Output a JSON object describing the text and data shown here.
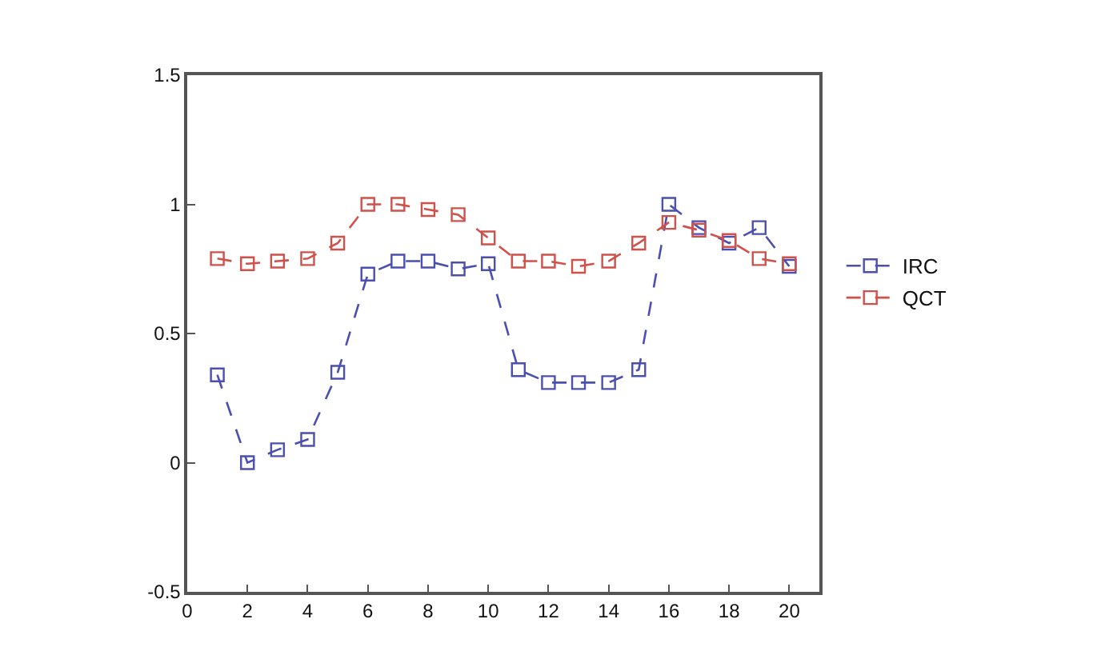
{
  "chart_data": {
    "type": "line",
    "x": [
      1,
      2,
      3,
      4,
      5,
      6,
      7,
      8,
      9,
      10,
      11,
      12,
      13,
      14,
      15,
      16,
      17,
      18,
      19,
      20
    ],
    "series": [
      {
        "name": "IRC",
        "color": "#4a4fb0",
        "values": [
          0.34,
          0.0,
          0.05,
          0.09,
          0.35,
          0.73,
          0.78,
          0.78,
          0.75,
          0.77,
          0.36,
          0.31,
          0.31,
          0.31,
          0.36,
          1.0,
          0.91,
          0.85,
          0.91,
          0.76
        ]
      },
      {
        "name": "QCT",
        "color": "#d0504a",
        "values": [
          0.79,
          0.77,
          0.78,
          0.79,
          0.85,
          1.0,
          1.0,
          0.98,
          0.96,
          0.87,
          0.78,
          0.78,
          0.76,
          0.78,
          0.85,
          0.93,
          0.9,
          0.86,
          0.79,
          0.77
        ]
      }
    ],
    "xlim": [
      0,
      21
    ],
    "xticks": [
      0,
      2,
      4,
      6,
      8,
      10,
      12,
      14,
      16,
      18,
      20
    ],
    "ylim": [
      -0.5,
      1.5
    ],
    "yticks": [
      -0.5,
      0,
      0.5,
      1,
      1.5
    ],
    "legend": "right",
    "marker": "square",
    "line_style": "dashed"
  }
}
